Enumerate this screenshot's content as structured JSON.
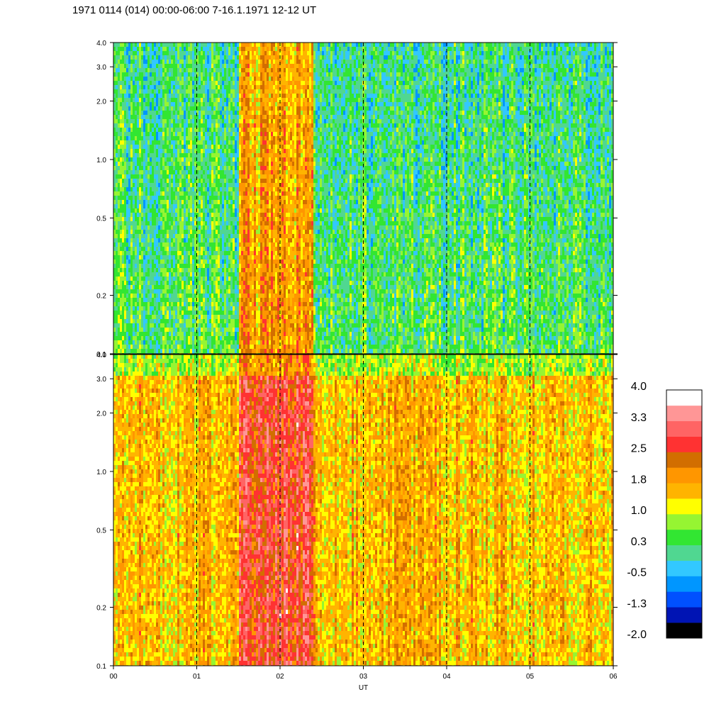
{
  "title": "1971 0114 (014) 00:00-06:00 7-16.1.1971  12-12 UT",
  "chart_data": {
    "type": "heatmap",
    "xlabel": "UT",
    "x_ticks": [
      "00",
      "01",
      "02",
      "03",
      "04",
      "05",
      "06"
    ],
    "xlim": [
      0,
      6
    ],
    "panels": [
      {
        "name": "",
        "y_ticks": [
          "0.1",
          "0.2",
          "0.5",
          "1.0",
          "2.0",
          "3.0",
          "4.0"
        ],
        "y_values": [
          0.1,
          0.2,
          0.5,
          1.0,
          2.0,
          3.0,
          4.0
        ],
        "y_scale": "log",
        "ylim": [
          0.1,
          4.0
        ],
        "base_level": 0.4,
        "band_level": 1.9,
        "band_x_range": [
          1.5,
          2.4
        ]
      },
      {
        "name": "",
        "y_ticks": [
          "0.1",
          "0.2",
          "0.5",
          "1.0",
          "2.0",
          "3.0",
          "4.0"
        ],
        "y_values": [
          0.1,
          0.2,
          0.5,
          1.0,
          2.0,
          3.0,
          4.0
        ],
        "y_scale": "log",
        "ylim": [
          0.1,
          4.0
        ],
        "base_level": 1.6,
        "band_level": 2.7,
        "band_x_range": [
          1.5,
          2.4
        ]
      }
    ],
    "dashed_gridlines_x": [
      1,
      2,
      3,
      4,
      5
    ],
    "colorbar": {
      "labels": [
        "4.0",
        "3.3",
        "2.5",
        "1.8",
        "1.0",
        "0.3",
        "-0.5",
        "-1.3",
        "-2.0"
      ],
      "min": -2.0,
      "max": 4.0,
      "colors": [
        "#000000",
        "#0014b4",
        "#0050ff",
        "#0096ff",
        "#32c8ff",
        "#50d791",
        "#32e632",
        "#96f532",
        "#ffff00",
        "#ffb400",
        "#ff9600",
        "#d26e00",
        "#ff3232",
        "#ff6464",
        "#ff9696",
        "#ffffff"
      ]
    }
  }
}
